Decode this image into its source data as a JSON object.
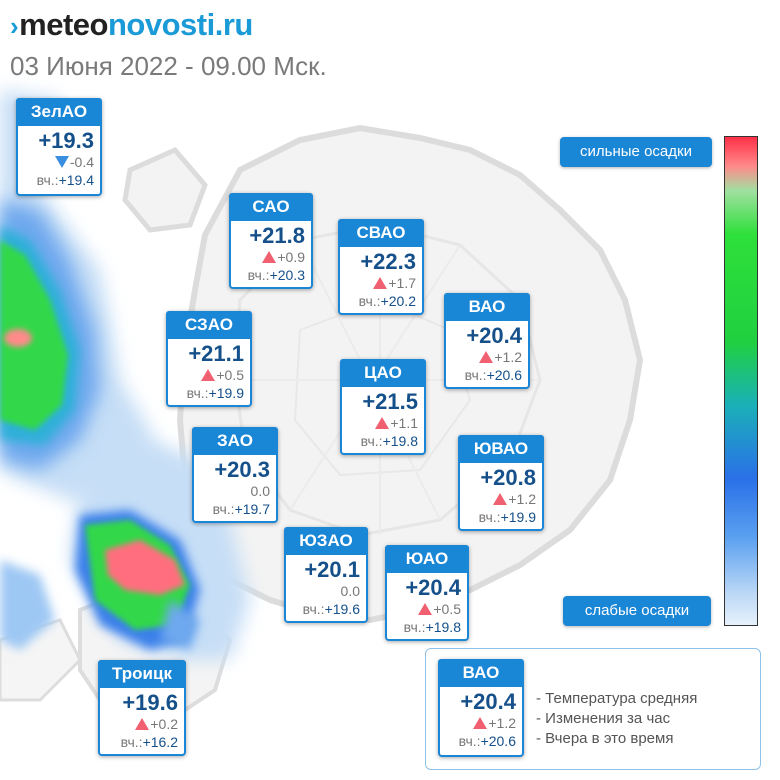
{
  "header": {
    "logo_prefix": "›",
    "logo_part1": "meteo",
    "logo_part2": "novosti.ru",
    "date": "03 Июня 2022 - 09.00 Мск."
  },
  "scale": {
    "top_label": "сильные осадки",
    "bottom_label": "слабые осадки"
  },
  "districts": [
    {
      "name": "ЗелАО",
      "temp": "+19.3",
      "trend": "down",
      "change": "-0.4",
      "prev_label": "вч.:",
      "prev": "+19.4"
    },
    {
      "name": "САО",
      "temp": "+21.8",
      "trend": "up",
      "change": "+0.9",
      "prev_label": "вч.:",
      "prev": "+20.3"
    },
    {
      "name": "СВАО",
      "temp": "+22.3",
      "trend": "up",
      "change": "+1.7",
      "prev_label": "вч.:",
      "prev": "+20.2"
    },
    {
      "name": "ВАО",
      "temp": "+20.4",
      "trend": "up",
      "change": "+1.2",
      "prev_label": "вч.:",
      "prev": "+20.6"
    },
    {
      "name": "СЗАО",
      "temp": "+21.1",
      "trend": "up",
      "change": "+0.5",
      "prev_label": "вч.:",
      "prev": "+19.9"
    },
    {
      "name": "ЦАО",
      "temp": "+21.5",
      "trend": "up",
      "change": "+1.1",
      "prev_label": "вч.:",
      "prev": "+19.8"
    },
    {
      "name": "ЗАО",
      "temp": "+20.3",
      "trend": "none",
      "change": "0.0",
      "prev_label": "вч.:",
      "prev": "+19.7"
    },
    {
      "name": "ЮВАО",
      "temp": "+20.8",
      "trend": "up",
      "change": "+1.2",
      "prev_label": "вч.:",
      "prev": "+19.9"
    },
    {
      "name": "ЮЗАО",
      "temp": "+20.1",
      "trend": "none",
      "change": "0.0",
      "prev_label": "вч.:",
      "prev": "+19.6"
    },
    {
      "name": "ЮАО",
      "temp": "+20.4",
      "trend": "up",
      "change": "+0.5",
      "prev_label": "вч.:",
      "prev": "+19.8"
    },
    {
      "name": "Троицк",
      "temp": "+19.6",
      "trend": "up",
      "change": "+0.2",
      "prev_label": "вч.:",
      "prev": "+16.2"
    }
  ],
  "legend": {
    "sample": {
      "name": "ВАО",
      "temp": "+20.4",
      "trend": "up",
      "change": "+1.2",
      "prev_label": "вч.:",
      "prev": "+20.6"
    },
    "line1": "- Температура средняя",
    "line2": "- Изменения за час",
    "line3": "- Вчера в это время"
  },
  "colors": {
    "accent": "#1a86d6",
    "temp_text": "#15508a",
    "trend_up": "#f06070",
    "trend_down": "#3a8ee0",
    "precip_strong": "#ff3048",
    "precip_medium": "#2ee03a",
    "precip_light": "#bfdaf6"
  }
}
